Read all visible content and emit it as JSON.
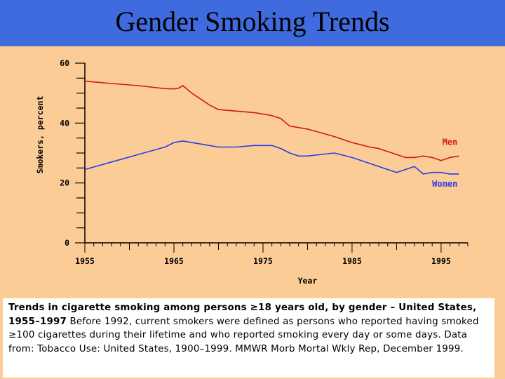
{
  "slide": {
    "title": "Gender Smoking Trends",
    "caption_bold": "Trends in cigarette smoking among persons ≥18 years old, by gender – United States, 1955–1997",
    "caption_text": " Before 1992, current smokers were defined as persons who reported having smoked ≥100 cigarettes during their lifetime and who reported smoking every day or some days. Data from: Tobacco Use: United States, 1900–1999. MMWR Morb Mortal Wkly Rep, December 1999."
  },
  "colors": {
    "background": "#3f6bdf",
    "panel": "#fccc97",
    "men": "#d01a10",
    "women": "#2a3ce6"
  },
  "chart_data": {
    "type": "line",
    "xlabel": "Year",
    "ylabel": "Smokers, percent",
    "xlim": [
      1955,
      1998
    ],
    "ylim": [
      0,
      60
    ],
    "xticks": [
      1955,
      1965,
      1975,
      1985,
      1995
    ],
    "yticks": [
      0,
      20,
      40,
      60
    ],
    "grid": false,
    "series": [
      {
        "name": "Men",
        "color": "#d01a10",
        "x": [
          1955,
          1958,
          1961,
          1964,
          1965,
          1965.5,
          1966,
          1967,
          1968,
          1969,
          1970,
          1972,
          1974,
          1976,
          1977,
          1978,
          1980,
          1983,
          1985,
          1987,
          1988,
          1990,
          1991,
          1992,
          1993,
          1994,
          1995,
          1996,
          1997
        ],
        "values": [
          54,
          53.2,
          52.5,
          51.5,
          51.4,
          51.6,
          52.5,
          50,
          48,
          46,
          44.5,
          44,
          43.5,
          42.5,
          41.5,
          39,
          38,
          35.5,
          33.5,
          32,
          31.5,
          29.5,
          28.5,
          28.5,
          29,
          28.5,
          27.5,
          28.5,
          29
        ]
      },
      {
        "name": "Women",
        "color": "#2a3ce6",
        "x": [
          1955,
          1958,
          1961,
          1964,
          1965,
          1966,
          1967,
          1968,
          1970,
          1972,
          1974,
          1976,
          1977,
          1978,
          1979,
          1980,
          1983,
          1985,
          1987,
          1989,
          1990,
          1991,
          1992,
          1993,
          1994,
          1995,
          1996,
          1997
        ],
        "values": [
          24.5,
          27,
          29.5,
          32,
          33.5,
          34,
          33.5,
          33,
          32,
          32,
          32.5,
          32.5,
          31.5,
          30,
          29,
          29,
          30,
          28.5,
          26.5,
          24.5,
          23.5,
          24.5,
          25.5,
          23,
          23.5,
          23.5,
          23,
          23
        ]
      }
    ]
  }
}
